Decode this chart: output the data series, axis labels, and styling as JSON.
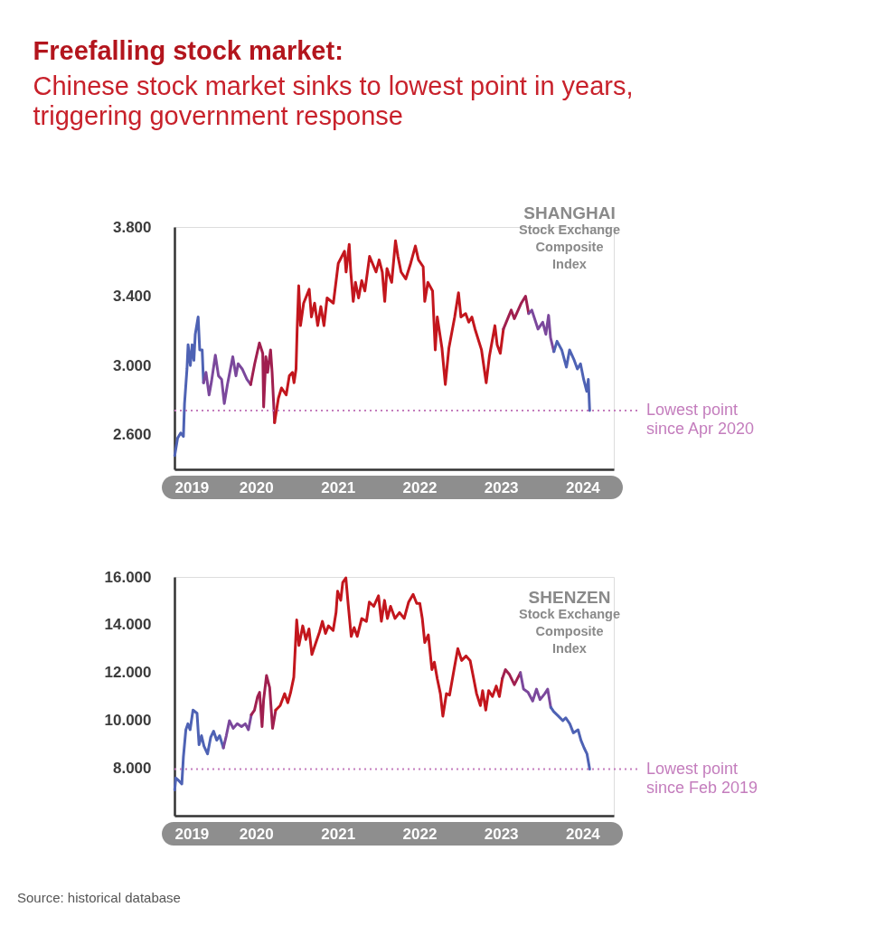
{
  "chart_data": [
    {
      "type": "other",
      "title": "Freefalling stock market:",
      "subtitle": "Chinese stock market sinks to lowest point in years, triggering government response"
    },
    {
      "type": "line",
      "title": "SHANGHAI Stock Exchange Composite Index",
      "series": [
        {
          "color": "#4e62b4",
          "x": [
            "2019-01-02",
            "2019-01-15",
            "2019-01-29",
            "2019-02-10",
            "2019-02-15",
            "2019-02-26",
            "2019-03-03",
            "2019-03-13",
            "2019-03-21",
            "2019-03-29",
            "2019-04-04",
            "2019-04-17",
            "2019-04-24",
            "2019-05-05",
            "2019-05-11"
          ],
          "values": [
            2480,
            2580,
            2610,
            2590,
            2780,
            2980,
            3120,
            3000,
            3120,
            3030,
            3180,
            3280,
            3090,
            3090,
            2900
          ]
        },
        {
          "color": "#7b489c",
          "x": [
            "2019-05-11",
            "2019-05-22",
            "2019-06-05",
            "2019-06-16",
            "2019-07-03",
            "2019-07-17",
            "2019-07-31",
            "2019-08-12",
            "2019-08-26",
            "2019-09-19",
            "2019-10-03",
            "2019-10-13",
            "2019-10-31",
            "2019-11-21",
            "2019-12-08"
          ],
          "values": [
            2900,
            2960,
            2830,
            2910,
            3060,
            2940,
            2920,
            2780,
            2890,
            3050,
            2940,
            3010,
            2980,
            2920,
            2890
          ]
        },
        {
          "color": "#a01f4f",
          "x": [
            "2019-12-08",
            "2019-12-26",
            "2020-01-16",
            "2020-01-31",
            "2020-02-04",
            "2020-02-14",
            "2020-02-22",
            "2020-03-06",
            "2020-03-13",
            "2020-03-24"
          ],
          "values": [
            2890,
            3010,
            3130,
            3070,
            2760,
            3050,
            2960,
            3090,
            2960,
            2670
          ]
        },
        {
          "color": "#c3161d",
          "x": [
            "2020-03-24",
            "2020-04-10",
            "2020-04-24",
            "2020-05-15",
            "2020-05-29",
            "2020-06-12",
            "2020-06-19",
            "2020-06-28",
            "2020-07-03",
            "2020-07-10",
            "2020-07-18",
            "2020-08-01",
            "2020-08-26",
            "2020-09-05",
            "2020-09-19",
            "2020-10-03",
            "2020-10-17",
            "2020-10-31",
            "2020-11-14",
            "2020-12-12",
            "2021-01-03",
            "2021-01-31",
            "2021-02-07",
            "2021-02-21",
            "2021-02-28",
            "2021-03-11",
            "2021-03-21",
            "2021-04-04",
            "2021-04-18",
            "2021-05-02",
            "2021-05-23",
            "2021-06-21",
            "2021-07-05",
            "2021-07-19",
            "2021-07-30",
            "2021-08-09",
            "2021-08-30",
            "2021-09-16",
            "2021-09-27",
            "2021-10-11",
            "2021-11-01",
            "2021-11-23",
            "2021-12-14",
            "2021-12-28",
            "2022-01-18",
            "2022-01-25",
            "2022-02-08",
            "2022-03-01",
            "2022-03-13",
            "2022-03-22",
            "2022-04-12",
            "2022-04-27",
            "2022-05-13",
            "2022-06-08",
            "2022-06-25",
            "2022-07-06",
            "2022-07-27",
            "2022-08-10",
            "2022-08-24",
            "2022-09-07",
            "2022-10-06",
            "2022-10-27",
            "2022-11-10",
            "2022-12-05",
            "2022-12-15",
            "2022-12-29",
            "2023-01-12"
          ],
          "values": [
            2670,
            2810,
            2870,
            2830,
            2940,
            2960,
            2900,
            2980,
            3210,
            3460,
            3230,
            3360,
            3440,
            3280,
            3360,
            3230,
            3340,
            3230,
            3390,
            3360,
            3590,
            3660,
            3540,
            3700,
            3540,
            3370,
            3480,
            3390,
            3490,
            3430,
            3630,
            3540,
            3610,
            3540,
            3370,
            3560,
            3480,
            3720,
            3630,
            3540,
            3500,
            3590,
            3690,
            3610,
            3570,
            3370,
            3480,
            3430,
            3090,
            3280,
            3100,
            2890,
            3100,
            3280,
            3420,
            3280,
            3300,
            3250,
            3280,
            3210,
            3090,
            2900,
            3050,
            3230,
            3120,
            3070,
            3210
          ]
        },
        {
          "color": "#a01f4f",
          "x": [
            "2023-01-12",
            "2023-02-16",
            "2023-03-02",
            "2023-04-02",
            "2023-04-21",
            "2023-05-05"
          ],
          "values": [
            3210,
            3320,
            3270,
            3360,
            3400,
            3300
          ]
        },
        {
          "color": "#7b489c",
          "x": [
            "2023-05-05",
            "2023-05-19",
            "2023-06-16",
            "2023-07-07",
            "2023-07-21",
            "2023-08-02",
            "2023-08-11",
            "2023-08-26"
          ],
          "values": [
            3300,
            3320,
            3210,
            3250,
            3180,
            3290,
            3160,
            3080
          ]
        },
        {
          "color": "#4e62b4",
          "x": [
            "2023-08-26",
            "2023-09-09",
            "2023-09-30",
            "2023-10-21",
            "2023-11-04",
            "2023-11-25",
            "2023-12-09",
            "2023-12-23",
            "2024-01-06",
            "2024-01-20",
            "2024-01-27",
            "2024-02-02"
          ],
          "values": [
            3080,
            3140,
            3090,
            2990,
            3090,
            3030,
            2980,
            3010,
            2920,
            2850,
            2920,
            2740
          ]
        }
      ],
      "xlim": [
        "2019-01-01",
        "2024-05-20"
      ],
      "xticks": [
        "2019",
        "2020",
        "2021",
        "2022",
        "2023",
        "2024"
      ],
      "ylim": [
        2400,
        3800
      ],
      "yticks": [
        {
          "value": 2600,
          "label": "2.600"
        },
        {
          "value": 3000,
          "label": "3.000"
        },
        {
          "value": 3400,
          "label": "3.400"
        },
        {
          "value": 3800,
          "label": "3.800"
        }
      ],
      "ref_lines": [
        {
          "axis": "y",
          "value": 2740,
          "label": "Lowest point since Apr 2020",
          "color": "#c47dbd",
          "line_style": "dotted"
        }
      ]
    },
    {
      "type": "line",
      "title": "SHENZEN Stock Exchange Composite Index",
      "series": [
        {
          "color": "#4e62b4",
          "x": [
            "2019-01-02",
            "2019-01-07",
            "2019-01-21",
            "2019-02-03",
            "2019-02-10",
            "2019-02-21",
            "2019-03-02",
            "2019-03-12",
            "2019-03-25",
            "2019-04-12",
            "2019-04-21",
            "2019-05-02",
            "2019-05-13",
            "2019-05-29",
            "2019-06-12",
            "2019-06-25",
            "2019-07-09",
            "2019-07-22",
            "2019-08-08"
          ],
          "values": [
            7080,
            7580,
            7460,
            7330,
            8470,
            9600,
            9850,
            9600,
            10420,
            10290,
            8970,
            9350,
            8910,
            8590,
            9280,
            9540,
            9160,
            9350,
            8840
          ]
        },
        {
          "color": "#7b489c",
          "x": [
            "2019-08-08",
            "2019-08-21",
            "2019-09-04",
            "2019-09-21",
            "2019-10-09",
            "2019-10-28",
            "2019-11-14",
            "2019-11-28",
            "2019-12-11"
          ],
          "values": [
            8840,
            9350,
            9980,
            9660,
            9850,
            9730,
            9850,
            9600,
            10230
          ]
        },
        {
          "color": "#a01f4f",
          "x": [
            "2019-12-11",
            "2019-12-25",
            "2020-01-08",
            "2020-01-17",
            "2020-01-28",
            "2020-02-04",
            "2020-02-17",
            "2020-03-02",
            "2020-03-15",
            "2020-03-29"
          ],
          "values": [
            10230,
            10420,
            10990,
            11170,
            9730,
            10860,
            11870,
            11360,
            9660,
            10420
          ]
        },
        {
          "color": "#c3161d",
          "x": [
            "2020-03-29",
            "2020-04-18",
            "2020-05-08",
            "2020-05-22",
            "2020-06-04",
            "2020-06-18",
            "2020-07-01",
            "2020-07-11",
            "2020-07-28",
            "2020-08-11",
            "2020-08-25",
            "2020-09-07",
            "2020-09-25",
            "2020-10-11",
            "2020-10-24",
            "2020-11-07",
            "2020-11-20",
            "2020-12-11",
            "2020-12-24",
            "2020-12-31",
            "2021-01-14",
            "2021-01-23",
            "2021-02-06",
            "2021-02-16",
            "2021-03-02",
            "2021-03-15",
            "2021-03-29",
            "2021-04-18",
            "2021-05-09",
            "2021-05-22",
            "2021-06-11",
            "2021-07-02",
            "2021-07-15",
            "2021-07-29",
            "2021-08-11",
            "2021-08-25",
            "2021-09-14",
            "2021-10-04",
            "2021-10-25",
            "2021-11-14",
            "2021-12-04",
            "2021-12-20",
            "2022-01-03",
            "2022-01-14",
            "2022-01-25",
            "2022-02-10",
            "2022-02-26",
            "2022-03-09",
            "2022-03-22",
            "2022-04-05",
            "2022-04-16",
            "2022-05-02",
            "2022-05-16",
            "2022-06-05",
            "2022-06-22",
            "2022-07-09",
            "2022-07-29",
            "2022-08-16",
            "2022-09-01",
            "2022-09-14",
            "2022-10-01",
            "2022-10-11",
            "2022-10-25",
            "2022-11-07",
            "2022-11-24",
            "2022-12-11",
            "2022-12-25",
            "2023-01-07"
          ],
          "values": [
            10420,
            10610,
            11110,
            10730,
            11170,
            11800,
            14200,
            13130,
            13950,
            13380,
            13820,
            12750,
            13250,
            13690,
            14140,
            13630,
            13950,
            13760,
            14510,
            15400,
            15020,
            15770,
            15960,
            14890,
            13510,
            13880,
            13510,
            14260,
            14140,
            14950,
            14770,
            15210,
            14140,
            15020,
            14260,
            14770,
            14260,
            14510,
            14260,
            14950,
            15270,
            14890,
            14890,
            14260,
            13250,
            13570,
            12120,
            12430,
            11740,
            11110,
            10170,
            11110,
            11050,
            12120,
            13000,
            12500,
            12690,
            12500,
            11740,
            11110,
            10610,
            11240,
            10420,
            11240,
            10990,
            11430,
            10990,
            11740
          ]
        },
        {
          "color": "#a01f4f",
          "x": [
            "2023-01-07",
            "2023-01-21",
            "2023-02-07",
            "2023-03-02",
            "2023-03-29"
          ],
          "values": [
            11740,
            12120,
            11930,
            11490,
            11990
          ]
        },
        {
          "color": "#7b489c",
          "x": [
            "2023-03-29",
            "2023-04-12",
            "2023-05-02",
            "2023-05-23",
            "2023-06-09",
            "2023-06-25",
            "2023-07-16",
            "2023-07-29",
            "2023-08-12"
          ],
          "values": [
            11990,
            11300,
            11170,
            10800,
            11300,
            10860,
            11110,
            11300,
            10540
          ]
        },
        {
          "color": "#4e62b4",
          "x": [
            "2023-08-12",
            "2023-08-25",
            "2023-09-15",
            "2023-10-05",
            "2023-10-18",
            "2023-11-05",
            "2023-11-21",
            "2023-12-12",
            "2023-12-25",
            "2024-01-08",
            "2024-01-21",
            "2024-02-02"
          ],
          "values": [
            10540,
            10360,
            10170,
            9980,
            10100,
            9850,
            9470,
            9600,
            9160,
            8840,
            8590,
            7950
          ]
        }
      ],
      "xlim": [
        "2019-01-01",
        "2024-05-20"
      ],
      "xticks": [
        "2019",
        "2020",
        "2021",
        "2022",
        "2023",
        "2024"
      ],
      "ylim": [
        6000,
        16000
      ],
      "yticks": [
        {
          "value": 8000,
          "label": "8.000"
        },
        {
          "value": 10000,
          "label": "10.000"
        },
        {
          "value": 12000,
          "label": "12.000"
        },
        {
          "value": 14000,
          "label": "14.000"
        },
        {
          "value": 16000,
          "label": "16.000"
        }
      ],
      "ref_lines": [
        {
          "axis": "y",
          "value": 7950,
          "label": "Lowest point since Feb 2019",
          "color": "#c47dbd",
          "line_style": "dotted"
        }
      ],
      "annotations": [
        "Source: historical database"
      ]
    }
  ]
}
